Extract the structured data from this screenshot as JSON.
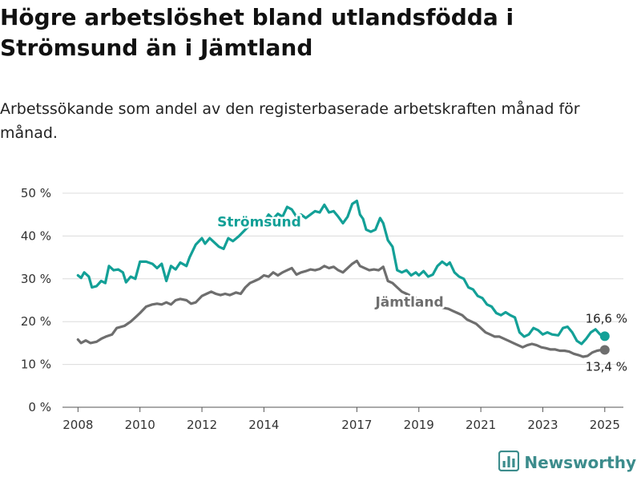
{
  "title": "Högre arbetslöshet bland utlandsfödda i Strömsund än i Jämtland",
  "subtitle": "Arbetssökande som andel av den registerbaserade arbetskraften månad för månad.",
  "brand": {
    "name": "Newsworthy",
    "icon": "bar-chart-logo-icon"
  },
  "chart_data": {
    "type": "line",
    "title": "Högre arbetslöshet bland utlandsfödda i Strömsund än i Jämtland",
    "subtitle": "Arbetssökande som andel av den registerbaserade arbetskraften månad för månad.",
    "xlabel": "",
    "ylabel": "",
    "ylim": [
      0,
      50
    ],
    "xlim": [
      2007.5,
      2025.6
    ],
    "y_ticks": [
      0,
      10,
      20,
      30,
      40,
      50
    ],
    "y_tick_labels": [
      "0 %",
      "10 %",
      "20 %",
      "30 %",
      "40 %",
      "50 %"
    ],
    "x_ticks": [
      2008,
      2010,
      2012,
      2014,
      2017,
      2019,
      2021,
      2023,
      2025
    ],
    "x_tick_labels": [
      "2008",
      "2010",
      "2012",
      "2014",
      "2017",
      "2019",
      "2021",
      "2023",
      "2025"
    ],
    "grid": "horizontal",
    "colors": {
      "stromsund": "#13a097",
      "jamtland": "#6e6e6e"
    },
    "series": [
      {
        "name": "Strömsund",
        "color": "#13a097",
        "end_label": "16,6 %",
        "points": [
          [
            2008.0,
            30.8
          ],
          [
            2008.1,
            30.2
          ],
          [
            2008.2,
            31.5
          ],
          [
            2008.35,
            30.5
          ],
          [
            2008.45,
            28.0
          ],
          [
            2008.6,
            28.3
          ],
          [
            2008.75,
            29.5
          ],
          [
            2008.88,
            29.0
          ],
          [
            2009.0,
            33.0
          ],
          [
            2009.15,
            32.0
          ],
          [
            2009.3,
            32.2
          ],
          [
            2009.45,
            31.5
          ],
          [
            2009.55,
            29.2
          ],
          [
            2009.7,
            30.5
          ],
          [
            2009.85,
            30.0
          ],
          [
            2010.0,
            34.0
          ],
          [
            2010.2,
            34.0
          ],
          [
            2010.4,
            33.5
          ],
          [
            2010.55,
            32.5
          ],
          [
            2010.7,
            33.5
          ],
          [
            2010.85,
            29.5
          ],
          [
            2011.0,
            33.0
          ],
          [
            2011.15,
            32.2
          ],
          [
            2011.3,
            33.8
          ],
          [
            2011.5,
            33.0
          ],
          [
            2011.6,
            35.0
          ],
          [
            2011.8,
            38.0
          ],
          [
            2012.0,
            39.5
          ],
          [
            2012.1,
            38.2
          ],
          [
            2012.25,
            39.5
          ],
          [
            2012.4,
            38.5
          ],
          [
            2012.55,
            37.5
          ],
          [
            2012.7,
            37.0
          ],
          [
            2012.85,
            39.5
          ],
          [
            2013.0,
            38.8
          ],
          [
            2013.2,
            40.0
          ],
          [
            2013.4,
            41.5
          ],
          [
            2013.6,
            43.0
          ],
          [
            2013.75,
            42.5
          ],
          [
            2013.9,
            44.0
          ],
          [
            2014.0,
            43.2
          ],
          [
            2014.15,
            45.0
          ],
          [
            2014.3,
            44.0
          ],
          [
            2014.45,
            45.2
          ],
          [
            2014.6,
            44.5
          ],
          [
            2014.75,
            46.8
          ],
          [
            2014.9,
            46.2
          ],
          [
            2015.05,
            44.5
          ],
          [
            2015.2,
            45.0
          ],
          [
            2015.35,
            44.2
          ],
          [
            2015.5,
            45.0
          ],
          [
            2015.65,
            45.8
          ],
          [
            2015.8,
            45.5
          ],
          [
            2015.95,
            47.3
          ],
          [
            2016.1,
            45.5
          ],
          [
            2016.25,
            45.8
          ],
          [
            2016.4,
            44.5
          ],
          [
            2016.55,
            43.0
          ],
          [
            2016.7,
            44.5
          ],
          [
            2016.85,
            47.5
          ],
          [
            2017.0,
            48.2
          ],
          [
            2017.1,
            45.0
          ],
          [
            2017.2,
            44.0
          ],
          [
            2017.3,
            41.5
          ],
          [
            2017.45,
            41.0
          ],
          [
            2017.6,
            41.5
          ],
          [
            2017.75,
            44.2
          ],
          [
            2017.85,
            43.0
          ],
          [
            2018.0,
            39.0
          ],
          [
            2018.15,
            37.5
          ],
          [
            2018.3,
            32.0
          ],
          [
            2018.45,
            31.5
          ],
          [
            2018.6,
            32.0
          ],
          [
            2018.75,
            30.8
          ],
          [
            2018.9,
            31.5
          ],
          [
            2019.0,
            30.8
          ],
          [
            2019.15,
            31.8
          ],
          [
            2019.3,
            30.5
          ],
          [
            2019.45,
            31.0
          ],
          [
            2019.6,
            33.0
          ],
          [
            2019.75,
            34.0
          ],
          [
            2019.9,
            33.2
          ],
          [
            2020.0,
            33.8
          ],
          [
            2020.15,
            31.5
          ],
          [
            2020.3,
            30.5
          ],
          [
            2020.45,
            30.0
          ],
          [
            2020.6,
            28.0
          ],
          [
            2020.75,
            27.5
          ],
          [
            2020.9,
            26.0
          ],
          [
            2021.05,
            25.5
          ],
          [
            2021.2,
            24.0
          ],
          [
            2021.35,
            23.5
          ],
          [
            2021.5,
            22.0
          ],
          [
            2021.65,
            21.5
          ],
          [
            2021.8,
            22.2
          ],
          [
            2021.95,
            21.5
          ],
          [
            2022.1,
            21.0
          ],
          [
            2022.25,
            17.5
          ],
          [
            2022.4,
            16.5
          ],
          [
            2022.55,
            17.0
          ],
          [
            2022.7,
            18.5
          ],
          [
            2022.85,
            18.0
          ],
          [
            2023.0,
            17.0
          ],
          [
            2023.15,
            17.5
          ],
          [
            2023.3,
            17.0
          ],
          [
            2023.5,
            16.8
          ],
          [
            2023.65,
            18.5
          ],
          [
            2023.8,
            18.8
          ],
          [
            2023.95,
            17.5
          ],
          [
            2024.1,
            15.5
          ],
          [
            2024.25,
            14.8
          ],
          [
            2024.4,
            16.0
          ],
          [
            2024.55,
            17.5
          ],
          [
            2024.7,
            18.2
          ],
          [
            2024.85,
            17.0
          ],
          [
            2025.0,
            16.6
          ]
        ]
      },
      {
        "name": "Jämtland",
        "color": "#6e6e6e",
        "end_label": "13,4 %",
        "points": [
          [
            2008.0,
            15.8
          ],
          [
            2008.1,
            15.0
          ],
          [
            2008.25,
            15.6
          ],
          [
            2008.4,
            15.0
          ],
          [
            2008.6,
            15.3
          ],
          [
            2008.75,
            16.0
          ],
          [
            2008.9,
            16.5
          ],
          [
            2009.1,
            17.0
          ],
          [
            2009.25,
            18.5
          ],
          [
            2009.5,
            19.0
          ],
          [
            2009.7,
            20.0
          ],
          [
            2009.85,
            21.0
          ],
          [
            2010.0,
            22.0
          ],
          [
            2010.2,
            23.5
          ],
          [
            2010.4,
            24.0
          ],
          [
            2010.55,
            24.2
          ],
          [
            2010.7,
            24.0
          ],
          [
            2010.85,
            24.5
          ],
          [
            2011.0,
            24.0
          ],
          [
            2011.15,
            25.0
          ],
          [
            2011.3,
            25.3
          ],
          [
            2011.5,
            25.0
          ],
          [
            2011.65,
            24.2
          ],
          [
            2011.8,
            24.5
          ],
          [
            2012.0,
            26.0
          ],
          [
            2012.15,
            26.5
          ],
          [
            2012.3,
            27.0
          ],
          [
            2012.45,
            26.5
          ],
          [
            2012.6,
            26.2
          ],
          [
            2012.75,
            26.5
          ],
          [
            2012.9,
            26.2
          ],
          [
            2013.1,
            26.8
          ],
          [
            2013.25,
            26.5
          ],
          [
            2013.4,
            28.0
          ],
          [
            2013.55,
            29.0
          ],
          [
            2013.7,
            29.5
          ],
          [
            2013.85,
            30.0
          ],
          [
            2014.0,
            30.8
          ],
          [
            2014.15,
            30.5
          ],
          [
            2014.3,
            31.5
          ],
          [
            2014.45,
            30.8
          ],
          [
            2014.6,
            31.5
          ],
          [
            2014.75,
            32.0
          ],
          [
            2014.9,
            32.5
          ],
          [
            2015.05,
            31.0
          ],
          [
            2015.2,
            31.5
          ],
          [
            2015.35,
            31.8
          ],
          [
            2015.5,
            32.2
          ],
          [
            2015.65,
            32.0
          ],
          [
            2015.8,
            32.3
          ],
          [
            2015.95,
            33.0
          ],
          [
            2016.1,
            32.5
          ],
          [
            2016.25,
            32.8
          ],
          [
            2016.4,
            32.0
          ],
          [
            2016.55,
            31.5
          ],
          [
            2016.7,
            32.5
          ],
          [
            2016.85,
            33.5
          ],
          [
            2017.0,
            34.2
          ],
          [
            2017.1,
            33.0
          ],
          [
            2017.25,
            32.5
          ],
          [
            2017.4,
            32.0
          ],
          [
            2017.55,
            32.2
          ],
          [
            2017.7,
            32.0
          ],
          [
            2017.85,
            32.8
          ],
          [
            2018.0,
            29.5
          ],
          [
            2018.15,
            29.0
          ],
          [
            2018.3,
            28.0
          ],
          [
            2018.45,
            27.0
          ],
          [
            2018.6,
            26.5
          ],
          [
            2018.75,
            26.0
          ],
          [
            2018.9,
            25.5
          ],
          [
            2019.05,
            25.0
          ],
          [
            2019.2,
            24.8
          ],
          [
            2019.35,
            24.5
          ],
          [
            2019.5,
            24.0
          ],
          [
            2019.65,
            23.5
          ],
          [
            2019.8,
            23.2
          ],
          [
            2019.95,
            23.0
          ],
          [
            2020.1,
            22.5
          ],
          [
            2020.25,
            22.0
          ],
          [
            2020.4,
            21.5
          ],
          [
            2020.55,
            20.5
          ],
          [
            2020.7,
            20.0
          ],
          [
            2020.85,
            19.5
          ],
          [
            2021.0,
            18.5
          ],
          [
            2021.15,
            17.5
          ],
          [
            2021.3,
            17.0
          ],
          [
            2021.45,
            16.5
          ],
          [
            2021.6,
            16.5
          ],
          [
            2021.75,
            16.0
          ],
          [
            2021.9,
            15.5
          ],
          [
            2022.05,
            15.0
          ],
          [
            2022.2,
            14.5
          ],
          [
            2022.35,
            14.0
          ],
          [
            2022.5,
            14.5
          ],
          [
            2022.65,
            14.8
          ],
          [
            2022.8,
            14.5
          ],
          [
            2022.95,
            14.0
          ],
          [
            2023.1,
            13.8
          ],
          [
            2023.25,
            13.5
          ],
          [
            2023.4,
            13.5
          ],
          [
            2023.55,
            13.2
          ],
          [
            2023.7,
            13.2
          ],
          [
            2023.85,
            13.0
          ],
          [
            2024.0,
            12.5
          ],
          [
            2024.15,
            12.2
          ],
          [
            2024.3,
            11.8
          ],
          [
            2024.45,
            12.0
          ],
          [
            2024.6,
            12.8
          ],
          [
            2024.75,
            13.2
          ],
          [
            2024.9,
            13.4
          ],
          [
            2025.0,
            13.4
          ]
        ]
      }
    ]
  }
}
